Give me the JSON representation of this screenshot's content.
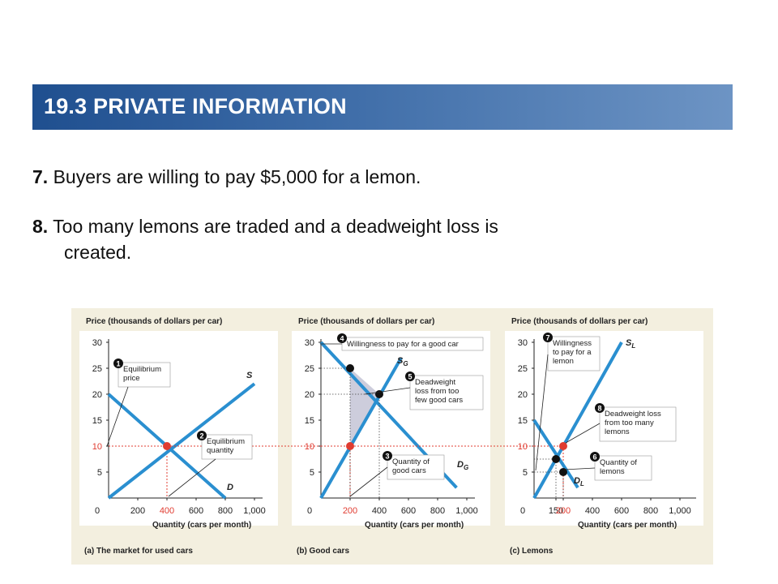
{
  "header": {
    "title": "19.3 PRIVATE INFORMATION"
  },
  "bullets": [
    {
      "num": "7.",
      "text": " Buyers are willing to pay $5,000 for a lemon."
    },
    {
      "num": "8.",
      "text": " Too many lemons are traded and a deadweight loss is",
      "cont": "created."
    }
  ],
  "colors": {
    "curve": "#2a8fd0",
    "point": "#e03c31",
    "dot": "#111111",
    "dashed": "#e03c31",
    "shade": "#c8c8d8",
    "figure_bg": "#f3efdf",
    "plot_bg": "#ffffff"
  },
  "chart_data": [
    {
      "type": "line",
      "panel_label": "(a) The market for used cars",
      "ylabel": "Price (thousands of dollars per car)",
      "xlabel": "Quantity (cars per month)",
      "xlim": [
        0,
        1000
      ],
      "ylim": [
        0,
        30
      ],
      "x_ticks": [
        "0",
        "200",
        "400",
        "600",
        "800",
        "1,000"
      ],
      "y_ticks": [
        "5",
        "10",
        "15",
        "20",
        "25",
        "30"
      ],
      "highlight_x": "400",
      "highlight_y": "10",
      "series": [
        {
          "name": "S",
          "x": [
            0,
            1000
          ],
          "y": [
            0,
            22
          ]
        },
        {
          "name": "D",
          "x": [
            0,
            800
          ],
          "y": [
            20,
            0
          ]
        }
      ],
      "points": [
        {
          "x": 400,
          "y": 10,
          "style": "red"
        }
      ],
      "annotations": [
        {
          "num": "1",
          "text": [
            "Equilibrium",
            "price"
          ]
        },
        {
          "num": "2",
          "text": [
            "Equilibrium",
            "quantity"
          ]
        }
      ]
    },
    {
      "type": "line",
      "panel_label": "(b) Good cars",
      "ylabel": "Price (thousands of dollars per car)",
      "xlabel": "Quantity (cars per month)",
      "xlim": [
        0,
        1000
      ],
      "ylim": [
        0,
        30
      ],
      "x_ticks": [
        "0",
        "200",
        "400",
        "600",
        "800",
        "1,000"
      ],
      "y_ticks": [
        "5",
        "10",
        "15",
        "20",
        "25",
        "30"
      ],
      "highlight_x": "200",
      "highlight_y": "10",
      "series": [
        {
          "name": "SG",
          "x": [
            0,
            550
          ],
          "y": [
            0,
            27
          ]
        },
        {
          "name": "DG",
          "x": [
            0,
            930
          ],
          "y": [
            30,
            2
          ]
        }
      ],
      "points": [
        {
          "x": 200,
          "y": 10,
          "style": "red"
        },
        {
          "x": 200,
          "y": 25,
          "style": "black"
        },
        {
          "x": 400,
          "y": 20,
          "style": "black"
        }
      ],
      "deadweight_loss": [
        [
          200,
          10
        ],
        [
          200,
          25
        ],
        [
          400,
          20
        ]
      ],
      "annotations": [
        {
          "num": "4",
          "text": [
            "Willingness to pay for a good car"
          ]
        },
        {
          "num": "5",
          "text": [
            "Deadweight",
            "loss from too",
            "few good cars"
          ]
        },
        {
          "num": "3",
          "text": [
            "Quantity of",
            "good cars"
          ]
        }
      ]
    },
    {
      "type": "line",
      "panel_label": "(c) Lemons",
      "ylabel": "Price (thousands of dollars per car)",
      "xlabel": "Quantity (cars per month)",
      "xlim": [
        0,
        1000
      ],
      "ylim": [
        0,
        30
      ],
      "x_ticks": [
        "0",
        "150",
        "200",
        "400",
        "600",
        "800",
        "1,000"
      ],
      "y_ticks": [
        "5",
        "10",
        "15",
        "20",
        "25",
        "30"
      ],
      "highlight_x": "200",
      "highlight_y": "10",
      "series": [
        {
          "name": "SL",
          "x": [
            0,
            600
          ],
          "y": [
            0,
            30
          ]
        },
        {
          "name": "DL",
          "x": [
            0,
            300
          ],
          "y": [
            15,
            2
          ]
        }
      ],
      "points": [
        {
          "x": 200,
          "y": 10,
          "style": "red"
        },
        {
          "x": 150,
          "y": 7.5,
          "style": "black"
        },
        {
          "x": 200,
          "y": 5,
          "style": "black"
        }
      ],
      "annotations": [
        {
          "num": "7",
          "text": [
            "Willingness",
            "to pay for a",
            "lemon"
          ]
        },
        {
          "num": "8",
          "text": [
            "Deadweight loss",
            "from too many",
            "lemons"
          ]
        },
        {
          "num": "6",
          "text": [
            "Quantity of",
            "lemons"
          ]
        }
      ]
    }
  ]
}
